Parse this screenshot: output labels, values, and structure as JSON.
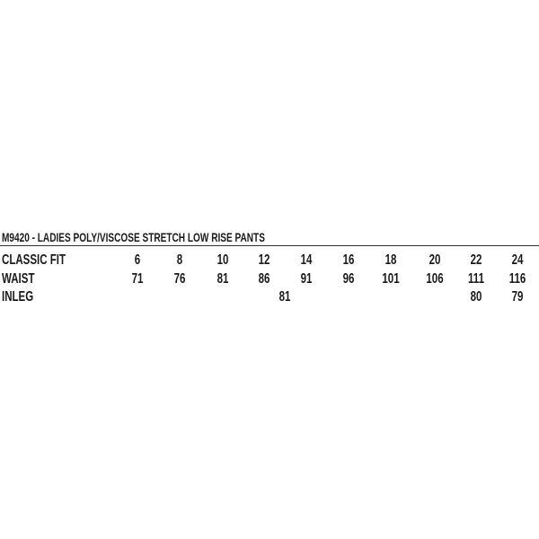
{
  "title": "M9420 - LADIES POLY/VISCOSE STRETCH LOW RISE PANTS",
  "header": {
    "label": "CLASSIC FIT",
    "sizes": [
      "6",
      "8",
      "10",
      "12",
      "14",
      "16",
      "18",
      "20",
      "22",
      "24"
    ]
  },
  "waist": {
    "label": "WAIST",
    "values": [
      "71",
      "76",
      "81",
      "86",
      "91",
      "96",
      "101",
      "106",
      "111",
      "116"
    ]
  },
  "inleg": {
    "label": "INLEG",
    "values": [
      {
        "sizes": "6-20",
        "value": "81"
      },
      {
        "sizes": "22",
        "value": "80"
      },
      {
        "sizes": "24",
        "value": "79"
      }
    ]
  }
}
